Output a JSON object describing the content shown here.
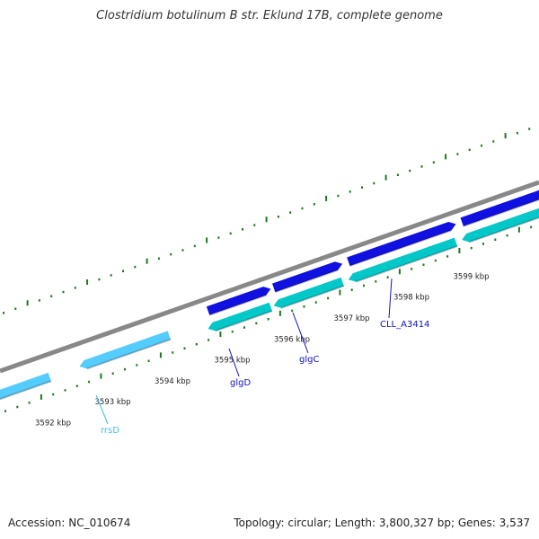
{
  "title": "Clostridium botulinum B str. Eklund 17B, complete genome",
  "footer": {
    "accession": "Accession: NC_010674",
    "summary": "Topology: circular; Length: 3,800,327 bp; Genes: 3,537"
  },
  "colors": {
    "backbone": "#888888",
    "tick": "#1a7a1a",
    "forward_gene": "#1010e0",
    "reverse_gene": "#00c8c8",
    "rrna_gene": "#55ccff",
    "gene_label": "#1010c0",
    "rrna_label": "#3fbfe8"
  },
  "axis": {
    "unit": "kbp",
    "ticks": [
      3592,
      3593,
      3594,
      3595,
      3596,
      3597,
      3598,
      3599
    ],
    "tick_labels": [
      "3592 kbp",
      "3593 kbp",
      "3594 kbp",
      "3595 kbp",
      "3596 kbp",
      "3597 kbp",
      "3598 kbp",
      "3599 kbp"
    ]
  },
  "features": [
    {
      "name": "rrsD",
      "kind": "rRNA",
      "strand": "reverse",
      "start_kbp": 3592.7,
      "end_kbp": 3594.2,
      "labeled": true
    },
    {
      "name": "",
      "kind": "rRNA",
      "strand": "reverse",
      "start_kbp": 3591.0,
      "end_kbp": 3592.2,
      "labeled": false
    },
    {
      "name": "glgD",
      "kind": "CDS",
      "strand": "forward",
      "start_kbp": 3594.85,
      "end_kbp": 3595.9,
      "labeled": true
    },
    {
      "name": "glgC",
      "kind": "CDS",
      "strand": "forward",
      "start_kbp": 3595.95,
      "end_kbp": 3597.1,
      "labeled": true
    },
    {
      "name": "CLL_A3414",
      "kind": "CDS",
      "strand": "forward",
      "start_kbp": 3597.2,
      "end_kbp": 3599.0,
      "labeled": true
    },
    {
      "name": "",
      "kind": "CDS",
      "strand": "forward",
      "start_kbp": 3599.1,
      "end_kbp": 3601.0,
      "labeled": false
    },
    {
      "name": "",
      "kind": "CDS",
      "strand": "reverse",
      "start_kbp": 3594.85,
      "end_kbp": 3595.9,
      "labeled": false
    },
    {
      "name": "",
      "kind": "CDS",
      "strand": "reverse",
      "start_kbp": 3595.95,
      "end_kbp": 3597.1,
      "labeled": false
    },
    {
      "name": "",
      "kind": "CDS",
      "strand": "reverse",
      "start_kbp": 3597.2,
      "end_kbp": 3599.0,
      "labeled": false
    },
    {
      "name": "",
      "kind": "CDS",
      "strand": "reverse",
      "start_kbp": 3599.1,
      "end_kbp": 3601.0,
      "labeled": false
    }
  ]
}
